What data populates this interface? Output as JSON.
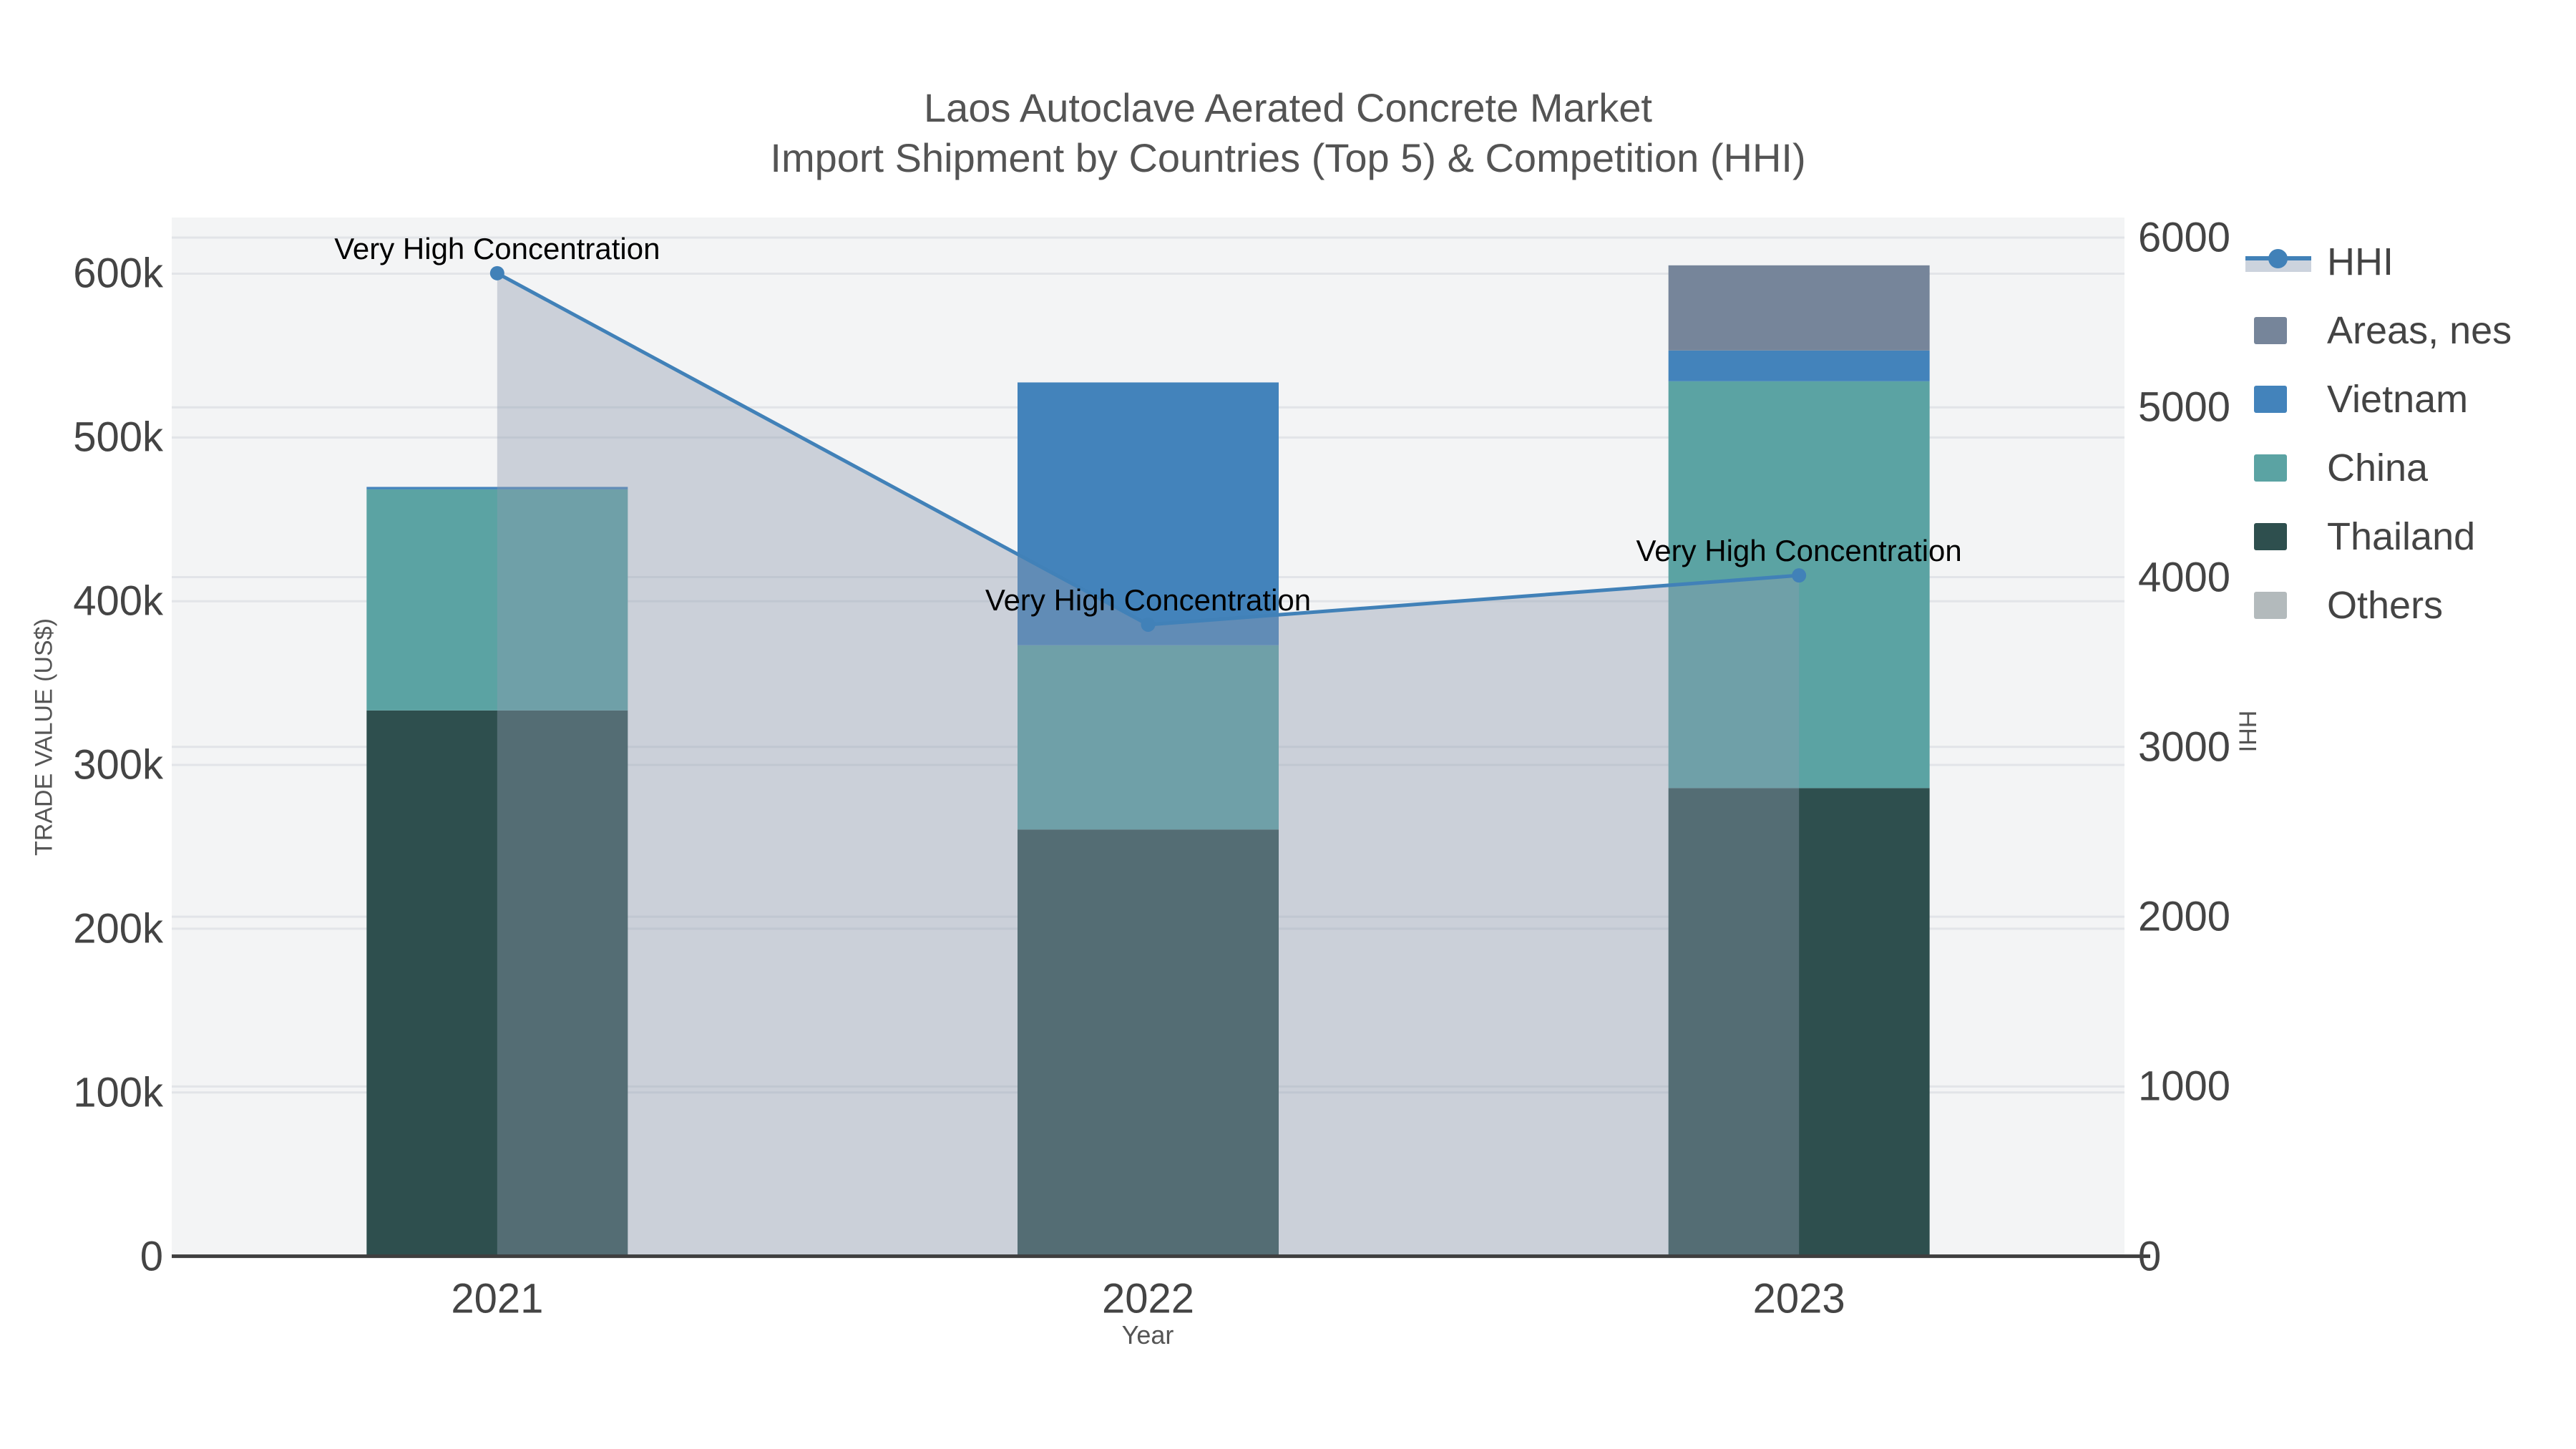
{
  "title": {
    "line1": "Laos Autoclave Aerated Concrete Market",
    "line2": "Import Shipment by Countries (Top 5) & Competition (HHI)"
  },
  "axes": {
    "x": {
      "title": "Year",
      "categories": [
        "2021",
        "2022",
        "2023"
      ]
    },
    "y_left": {
      "title": "TRADE VALUE (US$)",
      "tick_labels": [
        "0",
        "100k",
        "200k",
        "300k",
        "400k",
        "500k",
        "600k"
      ],
      "tick_values": [
        0,
        100000,
        200000,
        300000,
        400000,
        500000,
        600000
      ],
      "max": 634300
    },
    "y_right": {
      "title": "HHI",
      "tick_labels": [
        "0",
        "1000",
        "2000",
        "3000",
        "4000",
        "5000",
        "6000"
      ],
      "tick_values": [
        0,
        1000,
        2000,
        3000,
        4000,
        5000,
        6000
      ],
      "max": 6118
    }
  },
  "legend": {
    "items": [
      {
        "label": "HHI",
        "type": "line",
        "color": "#4181b8",
        "fill": "#ccd3dd"
      },
      {
        "label": "Areas, nes",
        "type": "square",
        "color": "#76859a"
      },
      {
        "label": "Vietnam",
        "type": "square",
        "color": "#4383bb"
      },
      {
        "label": "China",
        "type": "square",
        "color": "#5ba3a3"
      },
      {
        "label": "Thailand",
        "type": "square",
        "color": "#2e4f4e"
      },
      {
        "label": "Others",
        "type": "square",
        "color": "#b3babc"
      }
    ]
  },
  "annotations": [
    {
      "text": "Very High Concentration",
      "category_index": 0,
      "hhi": 5790
    },
    {
      "text": "Very High Concentration",
      "category_index": 1,
      "hhi": 3720
    },
    {
      "text": "Very High Concentration",
      "category_index": 2,
      "hhi": 4010
    }
  ],
  "chart_data": {
    "type": "bar+line",
    "categories": [
      "2021",
      "2022",
      "2023"
    ],
    "bar_value_unit": "US$",
    "series": [
      {
        "name": "Thailand",
        "color": "#2e4f4e",
        "values": [
          333300,
          260600,
          285900
        ]
      },
      {
        "name": "China",
        "color": "#5ba3a3",
        "values": [
          135000,
          112500,
          248400
        ]
      },
      {
        "name": "Vietnam",
        "color": "#4383bb",
        "values": [
          1500,
          160500,
          18800
        ]
      },
      {
        "name": "Areas, nes",
        "color": "#76859a",
        "values": [
          0,
          0,
          52000
        ]
      },
      {
        "name": "Others",
        "color": "#b3babc",
        "values": [
          0,
          0,
          0
        ]
      }
    ],
    "stack_totals": [
      469800,
      533600,
      605100
    ],
    "hhi_line": {
      "name": "HHI",
      "color": "#4181b8",
      "area_fill": "rgba(143,155,176,0.40)",
      "values": [
        5790,
        3720,
        4010
      ]
    },
    "y_left_range": [
      0,
      634300
    ],
    "y_right_range": [
      0,
      6118
    ],
    "grid": true,
    "legend_position": "right",
    "plot_background": "#f3f4f5",
    "gridline_color": "#e2e4e8",
    "axis_line_color": "#3f3f3f"
  }
}
